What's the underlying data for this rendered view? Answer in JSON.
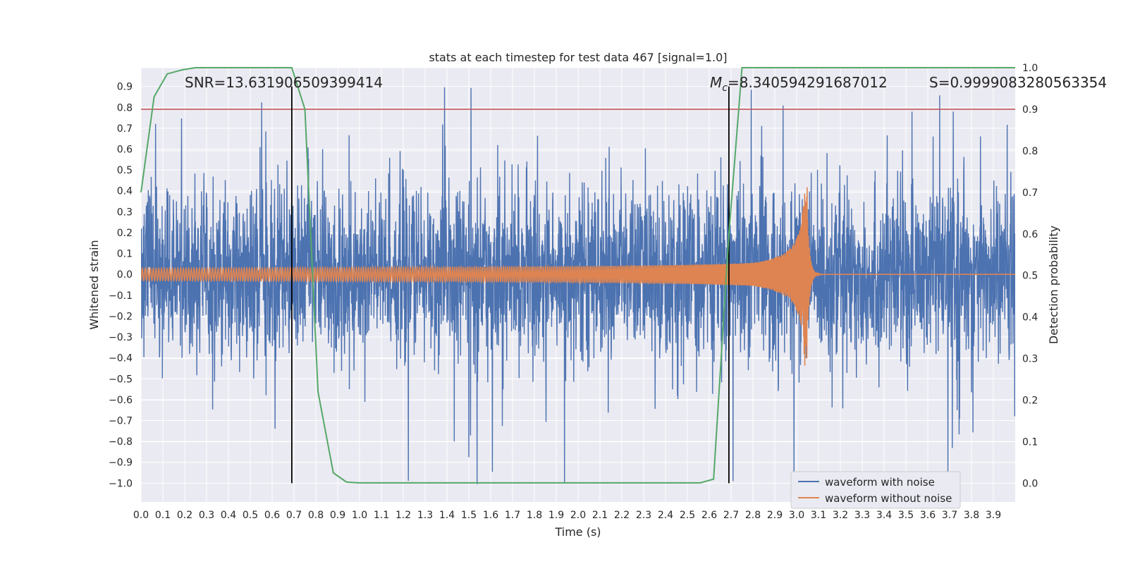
{
  "chart_data": {
    "type": "line",
    "title": "stats at each timestep for test data 467 [signal=1.0]",
    "xlabel": "Time (s)",
    "ylabel_left": "Whitened strain",
    "ylabel_right": "Detection probability",
    "xlim": [
      0.0,
      4.0
    ],
    "ylim_left": [
      -1.09,
      0.99
    ],
    "ylim_right": [
      -0.045,
      1.0
    ],
    "x_ticks": [
      "0.0",
      "0.1",
      "0.2",
      "0.3",
      "0.4",
      "0.5",
      "0.6",
      "0.7",
      "0.8",
      "0.9",
      "1.0",
      "1.1",
      "1.2",
      "1.3",
      "1.4",
      "1.5",
      "1.6",
      "1.7",
      "1.8",
      "1.9",
      "2.0",
      "2.1",
      "2.2",
      "2.3",
      "2.4",
      "2.5",
      "2.6",
      "2.7",
      "2.8",
      "2.9",
      "3.0",
      "3.1",
      "3.2",
      "3.3",
      "3.4",
      "3.5",
      "3.6",
      "3.7",
      "3.8",
      "3.9"
    ],
    "y_ticks_left": [
      "0.9",
      "0.8",
      "0.7",
      "0.6",
      "0.5",
      "0.4",
      "0.3",
      "0.2",
      "0.1",
      "0.0",
      "−0.1",
      "−0.2",
      "−0.3",
      "−0.4",
      "−0.5",
      "−0.6",
      "−0.7",
      "−0.8",
      "−0.9",
      "−1.0"
    ],
    "y_ticks_right": [
      "1.0",
      "0.9",
      "0.8",
      "0.7",
      "0.6",
      "0.5",
      "0.4",
      "0.3",
      "0.2",
      "0.1",
      "0.0"
    ],
    "annotations": {
      "snr_text": "SNR=13.631906509399414",
      "mc_symbol": "M",
      "mc_sub": "c",
      "mc_value": "=8.340594291687012",
      "s_text": "S=0.9999083280563354"
    },
    "legend": {
      "placement": "lower-right",
      "entries": [
        "waveform with noise",
        "waveform without noise"
      ]
    },
    "threshold": {
      "value": 0.9,
      "axis": "right",
      "color": "#c44e52"
    },
    "vertical_markers": [
      0.69,
      2.69
    ],
    "series": [
      {
        "name": "waveform with noise",
        "axis": "left",
        "color": "#4c72b0",
        "note_x_range": [
          0.0,
          4.0
        ],
        "typical_range": [
          -0.45,
          0.45
        ],
        "min": -1.0,
        "max": 0.9
      },
      {
        "name": "waveform without noise",
        "axis": "left",
        "color": "#dd8452",
        "chirp_start_amplitude": 0.03,
        "merger_time": 3.05,
        "peak_amplitude": 0.44
      },
      {
        "name": "detection probability",
        "axis": "right",
        "color": "#55a868",
        "x": [
          0.0,
          0.06,
          0.12,
          0.19,
          0.25,
          0.31,
          0.38,
          0.44,
          0.5,
          0.56,
          0.62,
          0.69,
          0.75,
          0.81,
          0.88,
          0.94,
          1.0,
          2.56,
          2.62,
          2.69,
          2.75,
          2.81,
          2.88,
          3.0,
          3.5,
          3.9,
          4.0
        ],
        "y": [
          0.7,
          0.93,
          0.985,
          0.995,
          1.0,
          1.0,
          1.0,
          1.0,
          1.0,
          1.0,
          1.0,
          1.0,
          0.9,
          0.22,
          0.025,
          0.003,
          0.001,
          0.001,
          0.01,
          0.6,
          1.0,
          1.0,
          1.0,
          1.0,
          1.0,
          1.0,
          1.0
        ]
      }
    ],
    "colors": {
      "plot_bg": "#eaeaf2",
      "grid": "#ffffff",
      "marker_line": "#000000"
    }
  }
}
